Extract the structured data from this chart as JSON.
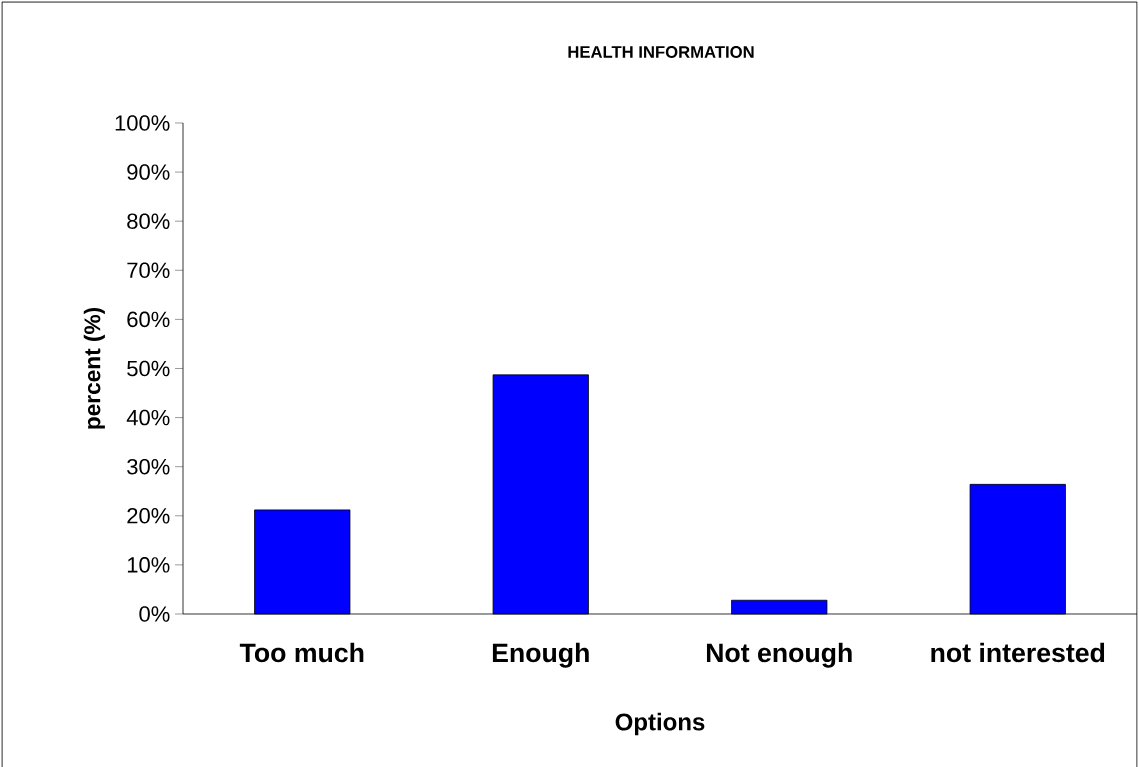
{
  "chart_data": {
    "type": "bar",
    "title": "HEALTH INFORMATION",
    "xlabel": "Options",
    "ylabel": "percent (%)",
    "categories": [
      "Too much",
      "Enough",
      "Not enough",
      "not interested"
    ],
    "values": [
      21.2,
      48.7,
      2.8,
      26.4
    ],
    "color": "#0000ff",
    "ylim": [
      0,
      100
    ],
    "yticks": [
      {
        "value": 0,
        "label": "0%"
      },
      {
        "value": 10,
        "label": "10%"
      },
      {
        "value": 20,
        "label": "20%"
      },
      {
        "value": 30,
        "label": "30%"
      },
      {
        "value": 40,
        "label": "40%"
      },
      {
        "value": 50,
        "label": "50%"
      },
      {
        "value": 60,
        "label": "60%"
      },
      {
        "value": 70,
        "label": "70%"
      },
      {
        "value": 80,
        "label": "80%"
      },
      {
        "value": 90,
        "label": "90%"
      },
      {
        "value": 100,
        "label": "100%"
      }
    ],
    "grid": false
  }
}
